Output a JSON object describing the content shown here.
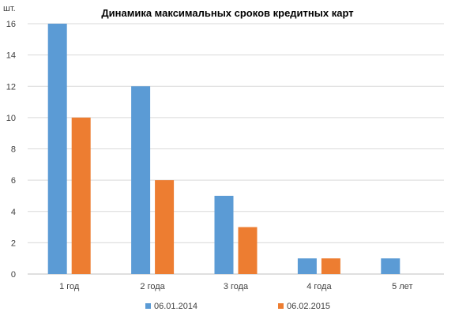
{
  "chart_data": {
    "type": "bar",
    "title": "Динамика максимальных сроков кредитных карт",
    "ylabel": "шт.",
    "xlabel": "",
    "categories": [
      "1 год",
      "2 года",
      "3 года",
      "4 года",
      "5 лет"
    ],
    "series": [
      {
        "name": "06.01.2014",
        "color": "#5B9BD5",
        "values": [
          16,
          12,
          5,
          1,
          1
        ]
      },
      {
        "name": "06.02.2015",
        "color": "#ED7D31",
        "values": [
          10,
          6,
          3,
          1,
          0
        ]
      }
    ],
    "ylim": [
      0,
      16
    ],
    "yticks": [
      0,
      2,
      4,
      6,
      8,
      10,
      12,
      14,
      16
    ],
    "grid": true,
    "legend": "bottom"
  }
}
